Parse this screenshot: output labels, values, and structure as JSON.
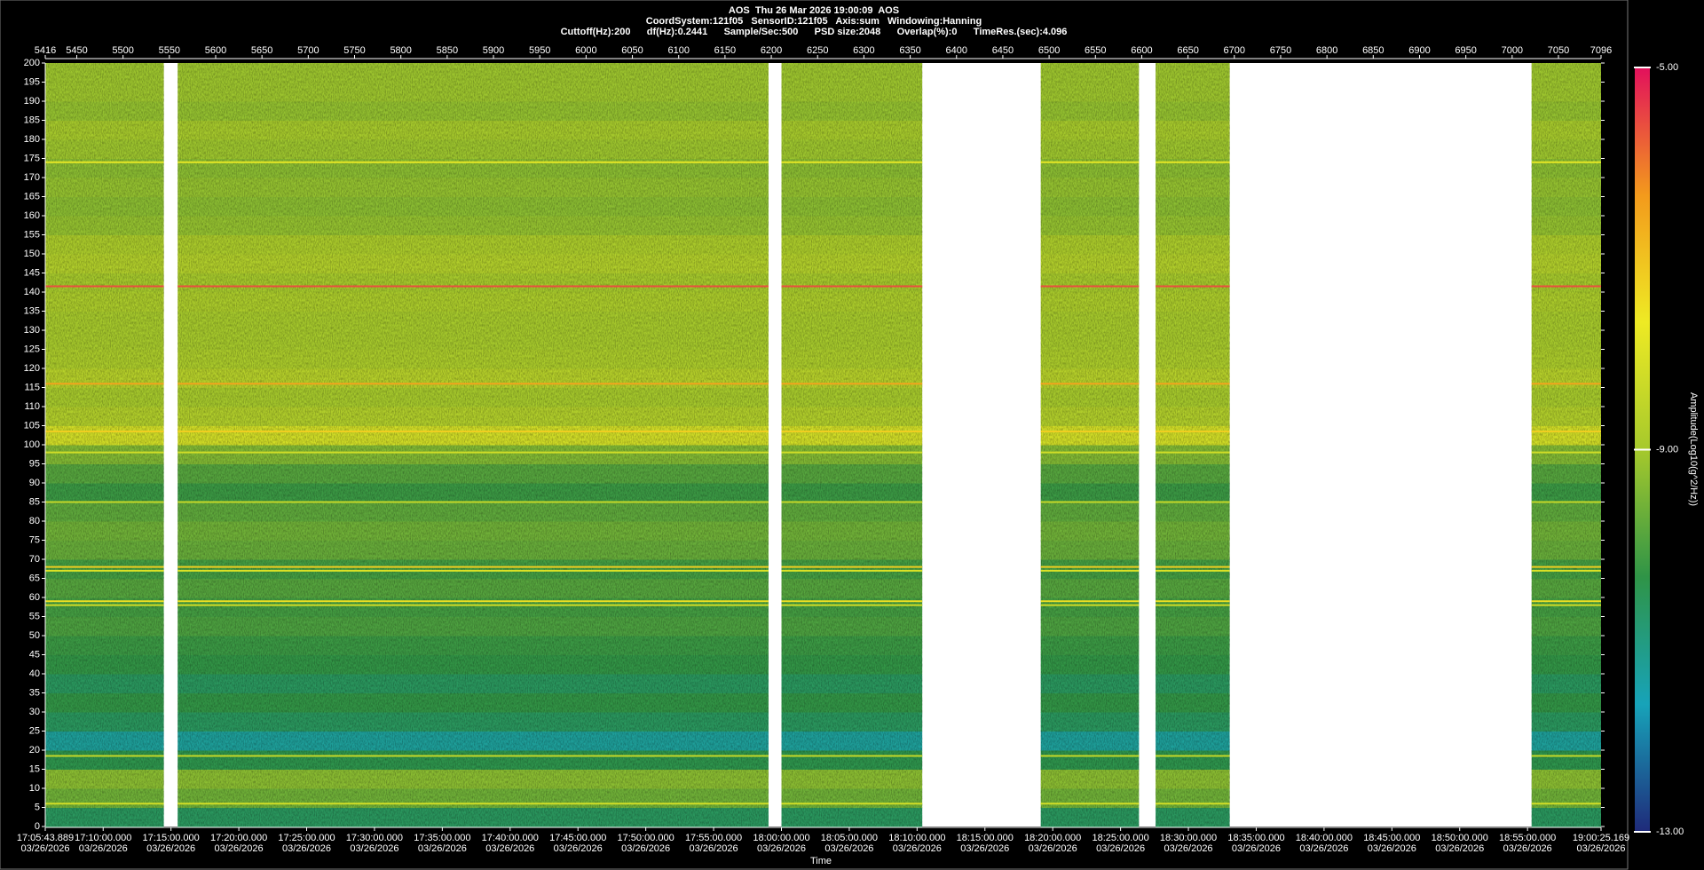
{
  "chart_data": {
    "type": "spectrogram",
    "title": "AOS  Thu 26 Mar 2026 19:00:09  AOS",
    "subtitle": [
      "CoordSystem:121f05   SensorID:121f05   Axis:sum   Windowing:Hanning",
      "Cuttoff(Hz):200      df(Hz):0.2441      Sample/Sec:500      PSD size:2048      Overlap(%):0      TimeRes.(sec):4.096"
    ],
    "xlabel": "Time",
    "colorbar_label": "Amplitude(Log10(g^2/Hz))",
    "x2lim": [
      5416,
      7096
    ],
    "x2ticks": [
      5416,
      5450,
      5500,
      5550,
      5600,
      5650,
      5700,
      5750,
      5800,
      5850,
      5900,
      5950,
      6000,
      6050,
      6100,
      6150,
      6200,
      6250,
      6300,
      6350,
      6400,
      6450,
      6500,
      6550,
      6600,
      6650,
      6700,
      6750,
      6800,
      6850,
      6900,
      6950,
      7000,
      7050,
      7096
    ],
    "xticks": [
      {
        "time": "17:05:43.889",
        "date": "03/26/2026"
      },
      {
        "time": "17:10:00.000",
        "date": "03/26/2026"
      },
      {
        "time": "17:15:00.000",
        "date": "03/26/2026"
      },
      {
        "time": "17:20:00.000",
        "date": "03/26/2026"
      },
      {
        "time": "17:25:00.000",
        "date": "03/26/2026"
      },
      {
        "time": "17:30:00.000",
        "date": "03/26/2026"
      },
      {
        "time": "17:35:00.000",
        "date": "03/26/2026"
      },
      {
        "time": "17:40:00.000",
        "date": "03/26/2026"
      },
      {
        "time": "17:45:00.000",
        "date": "03/26/2026"
      },
      {
        "time": "17:50:00.000",
        "date": "03/26/2026"
      },
      {
        "time": "17:55:00.000",
        "date": "03/26/2026"
      },
      {
        "time": "18:00:00.000",
        "date": "03/26/2026"
      },
      {
        "time": "18:05:00.000",
        "date": "03/26/2026"
      },
      {
        "time": "18:10:00.000",
        "date": "03/26/2026"
      },
      {
        "time": "18:15:00.000",
        "date": "03/26/2026"
      },
      {
        "time": "18:20:00.000",
        "date": "03/26/2026"
      },
      {
        "time": "18:25:00.000",
        "date": "03/26/2026"
      },
      {
        "time": "18:30:00.000",
        "date": "03/26/2026"
      },
      {
        "time": "18:35:00.000",
        "date": "03/26/2026"
      },
      {
        "time": "18:40:00.000",
        "date": "03/26/2026"
      },
      {
        "time": "18:45:00.000",
        "date": "03/26/2026"
      },
      {
        "time": "18:50:00.000",
        "date": "03/26/2026"
      },
      {
        "time": "18:55:00.000",
        "date": "03/26/2026"
      },
      {
        "time": "19:00:25.169",
        "date": "03/26/2026"
      }
    ],
    "ylim": [
      0,
      200
    ],
    "yticks": [
      0,
      5,
      10,
      15,
      20,
      25,
      30,
      35,
      40,
      45,
      50,
      55,
      60,
      65,
      70,
      75,
      80,
      85,
      90,
      95,
      100,
      105,
      110,
      115,
      120,
      125,
      130,
      135,
      140,
      145,
      150,
      155,
      160,
      165,
      170,
      175,
      180,
      185,
      190,
      195,
      200
    ],
    "clim": [
      -13,
      -5
    ],
    "cticks": [
      {
        "value": -5,
        "label": "-5.00"
      },
      {
        "value": -9,
        "label": "-9.00"
      },
      {
        "value": -13,
        "label": "-13.00"
      }
    ],
    "colormap": [
      "#1f2a7a",
      "#17a3b9",
      "#2f9447",
      "#a6c92c",
      "#eeea24",
      "#f39a1c",
      "#e2105c"
    ],
    "segments": [
      [
        5416,
        5544
      ],
      [
        5559,
        6197
      ],
      [
        6211,
        6363
      ],
      [
        6491,
        6597
      ],
      [
        6615,
        6695
      ],
      [
        7021,
        7096
      ]
    ],
    "freq_edges": [
      0,
      5,
      10,
      15,
      20,
      25,
      30,
      35,
      40,
      45,
      50,
      55,
      60,
      65,
      70,
      75,
      80,
      85,
      90,
      95,
      100,
      105,
      110,
      115,
      120,
      125,
      130,
      135,
      140,
      145,
      150,
      155,
      160,
      165,
      170,
      175,
      180,
      185,
      190,
      195,
      200
    ],
    "amplitude": [
      -10.6,
      -9.6,
      -9.3,
      -10.4,
      -11.3,
      -10.6,
      -10.3,
      -10.6,
      -10.3,
      -10.2,
      -10.0,
      -10.1,
      -9.9,
      -10.1,
      -9.7,
      -9.6,
      -9.8,
      -10.2,
      -9.9,
      -9.4,
      -8.2,
      -8.8,
      -9.0,
      -8.7,
      -8.9,
      -9.0,
      -9.0,
      -8.9,
      -9.0,
      -8.8,
      -8.9,
      -9.2,
      -9.3,
      -9.2,
      -9.3,
      -9.1,
      -9.0,
      -9.2,
      -9.1,
      -9.1
    ],
    "lines": [
      {
        "freq": 174,
        "amplitude": -7.8
      },
      {
        "freq": 141.5,
        "amplitude": -5.6
      },
      {
        "freq": 116,
        "amplitude": -6.5
      },
      {
        "freq": 103.5,
        "amplitude": -7.2
      },
      {
        "freq": 98,
        "amplitude": -8.2
      },
      {
        "freq": 85,
        "amplitude": -8.4
      },
      {
        "freq": 68,
        "amplitude": -7.2
      },
      {
        "freq": 67,
        "amplitude": -8.0
      },
      {
        "freq": 59,
        "amplitude": -7.5
      },
      {
        "freq": 58,
        "amplitude": -8.2
      },
      {
        "freq": 18.5,
        "amplitude": -8.4
      },
      {
        "freq": 6,
        "amplitude": -8.2
      }
    ]
  }
}
